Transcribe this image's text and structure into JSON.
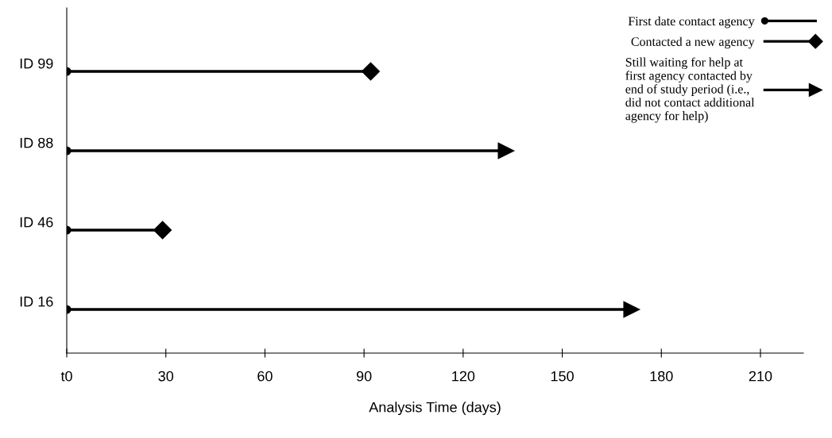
{
  "chart_data": {
    "type": "lollipop",
    "orientation": "horizontal",
    "xlabel": "Analysis Time (days)",
    "categories": [
      "ID 99",
      "ID 88",
      "ID 46",
      "ID 16"
    ],
    "xlim": [
      0,
      223
    ],
    "xticks": [
      {
        "value": 0,
        "label": "t0"
      },
      30,
      60,
      90,
      120,
      150,
      180,
      210
    ],
    "series": [
      {
        "name": "First date contact agency",
        "type": "scatter",
        "marker": "circle",
        "color": "#000000",
        "values": [
          0,
          0,
          0,
          0
        ]
      },
      {
        "name": "Contacted a new agency",
        "marker": "diamond",
        "color": "#000000",
        "values": [
          92,
          null,
          29,
          null
        ]
      },
      {
        "name": "Still waiting for help at\nfirst agency contacted by\nend of study period (i.e.,\ndid not contact additional\nagency for help)",
        "marker": "triangle",
        "color": "#000000",
        "values": [
          null,
          133,
          null,
          171
        ]
      }
    ],
    "legend": "top right",
    "grid": false
  }
}
